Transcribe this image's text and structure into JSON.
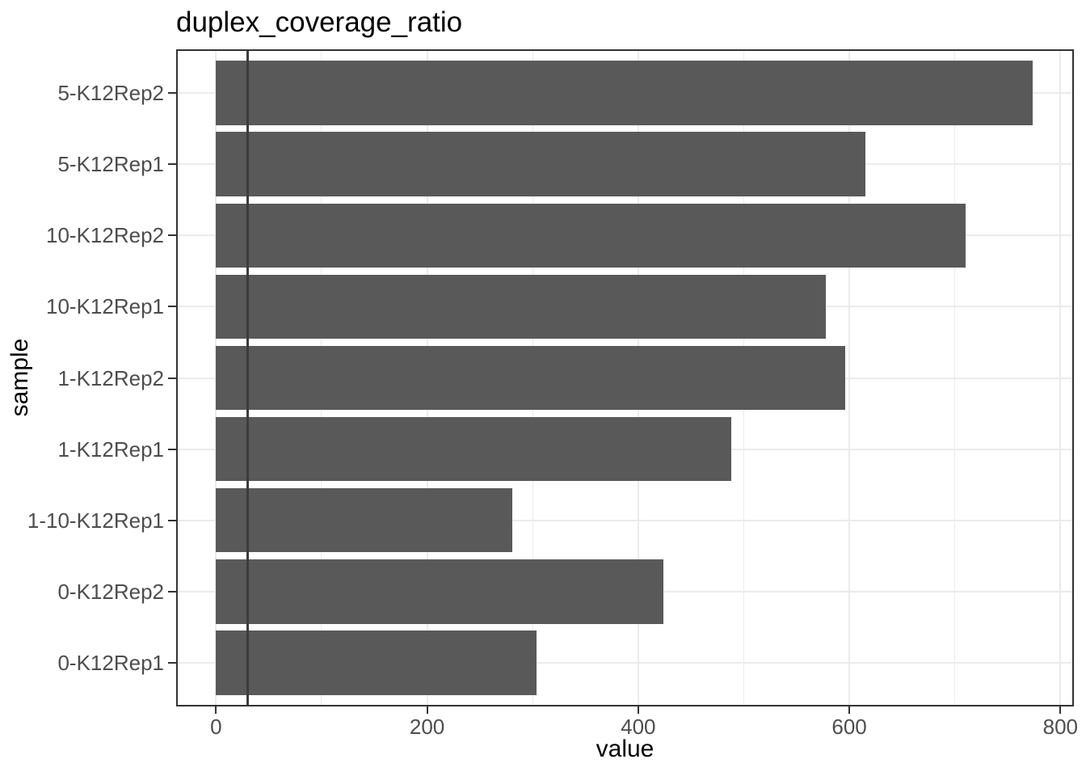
{
  "chart_data": {
    "type": "bar",
    "orientation": "horizontal",
    "title": "duplex_coverage_ratio",
    "xlabel": "value",
    "ylabel": "sample",
    "categories": [
      "5-K12Rep2",
      "5-K12Rep1",
      "10-K12Rep2",
      "10-K12Rep1",
      "1-K12Rep2",
      "1-K12Rep1",
      "1-10-K12Rep1",
      "0-K12Rep2",
      "0-K12Rep1"
    ],
    "values": [
      774,
      615,
      710,
      578,
      596,
      488,
      281,
      424,
      304
    ],
    "x_ticks": [
      0,
      200,
      400,
      600,
      800
    ],
    "x_minor_ticks": [
      100,
      300,
      500,
      700
    ],
    "xlim": [
      -37,
      812
    ],
    "reference_line_x": 30,
    "grid": true,
    "legend": false,
    "colors": {
      "bar": "#595959",
      "reference_line": "#3c3c3c",
      "gridline": "#ebebeb",
      "panel_border": "#333333",
      "tick_mark": "#333333",
      "axis_text": "#4d4d4d",
      "title_text": "#000000",
      "background": "#ffffff"
    }
  }
}
